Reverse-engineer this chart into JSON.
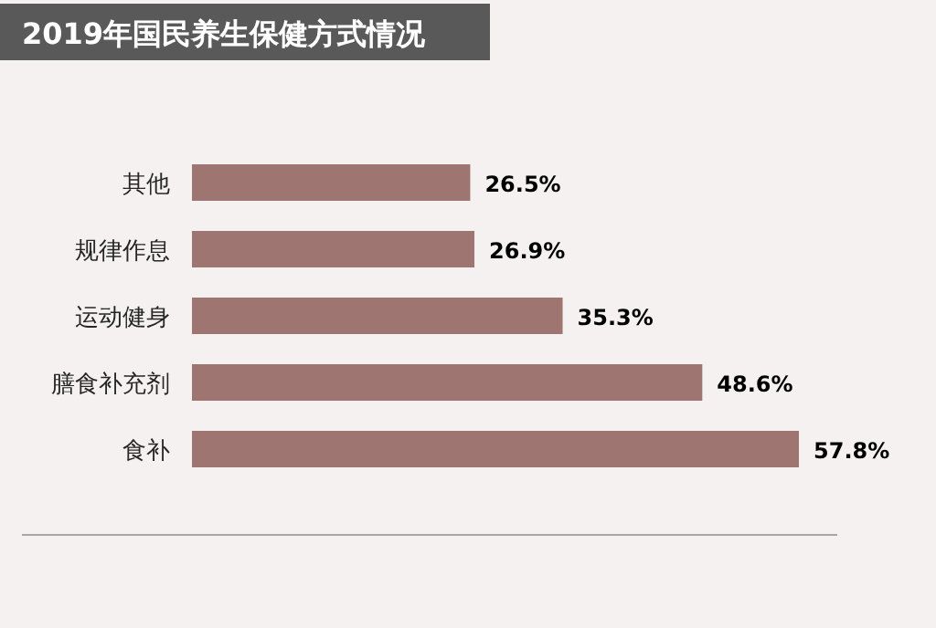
{
  "chart_data": {
    "type": "bar",
    "orientation": "horizontal",
    "title": "2019年国民养生保健方式情况",
    "categories": [
      "其他",
      "规律作息",
      "运动健身",
      "膳食补充剂",
      "食补"
    ],
    "values": [
      26.5,
      26.9,
      35.3,
      48.6,
      57.8
    ],
    "value_labels": [
      "26.5%",
      "26.9%",
      "35.3%",
      "48.6%",
      "57.8%"
    ],
    "color": "#9e7571"
  }
}
